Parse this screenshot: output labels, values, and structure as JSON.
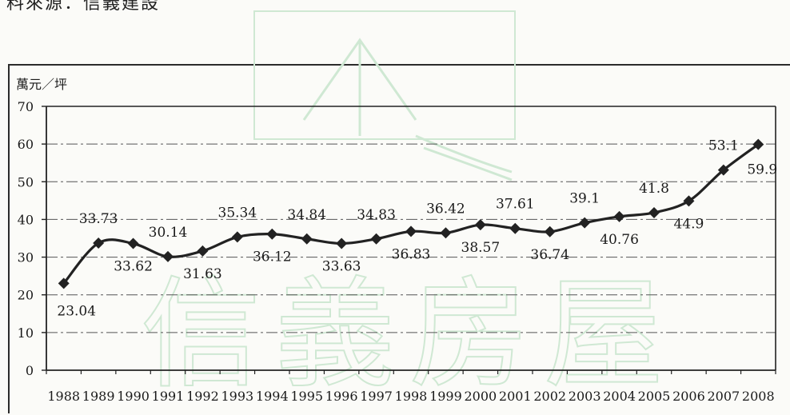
{
  "caption": "料來源：信義建設",
  "watermark": {
    "text": "信義房屋",
    "color": "#cfe8d3"
  },
  "chart_data": {
    "type": "line",
    "title": "",
    "ylabel": "萬元／坪",
    "xlabel": "",
    "ylim": [
      0,
      70
    ],
    "yticks": [
      0,
      10,
      20,
      30,
      40,
      50,
      60,
      70
    ],
    "grid": true,
    "legend": "none",
    "categories": [
      "1988",
      "1989",
      "1990",
      "1991",
      "1992",
      "1993",
      "1994",
      "1995",
      "1996",
      "1997",
      "1998",
      "1999",
      "2000",
      "2001",
      "2002",
      "2003",
      "2004",
      "2005",
      "2006",
      "2007",
      "2008"
    ],
    "series": [
      {
        "values": [
          23.04,
          33.73,
          33.62,
          30.14,
          31.63,
          35.34,
          36.12,
          34.84,
          33.63,
          34.83,
          36.83,
          36.42,
          38.57,
          37.61,
          36.74,
          39.1,
          40.76,
          41.8,
          44.9,
          53.1,
          59.9
        ],
        "color": "#222222"
      }
    ],
    "data_labels": [
      "23.04",
      "33.73",
      "33.62",
      "30.14",
      "31.63",
      "35.34",
      "36.12",
      "34.84",
      "33.63",
      "34.83",
      "36.83",
      "36.42",
      "38.57",
      "37.61",
      "36.74",
      "39.1",
      "40.76",
      "41.8",
      "44.9",
      "53.1",
      "59.9"
    ],
    "label_positions": [
      "below",
      "above",
      "below",
      "above",
      "below",
      "above",
      "below",
      "above",
      "below",
      "above",
      "below",
      "above",
      "below",
      "above",
      "below",
      "above",
      "below",
      "above",
      "below",
      "above",
      "below"
    ]
  }
}
